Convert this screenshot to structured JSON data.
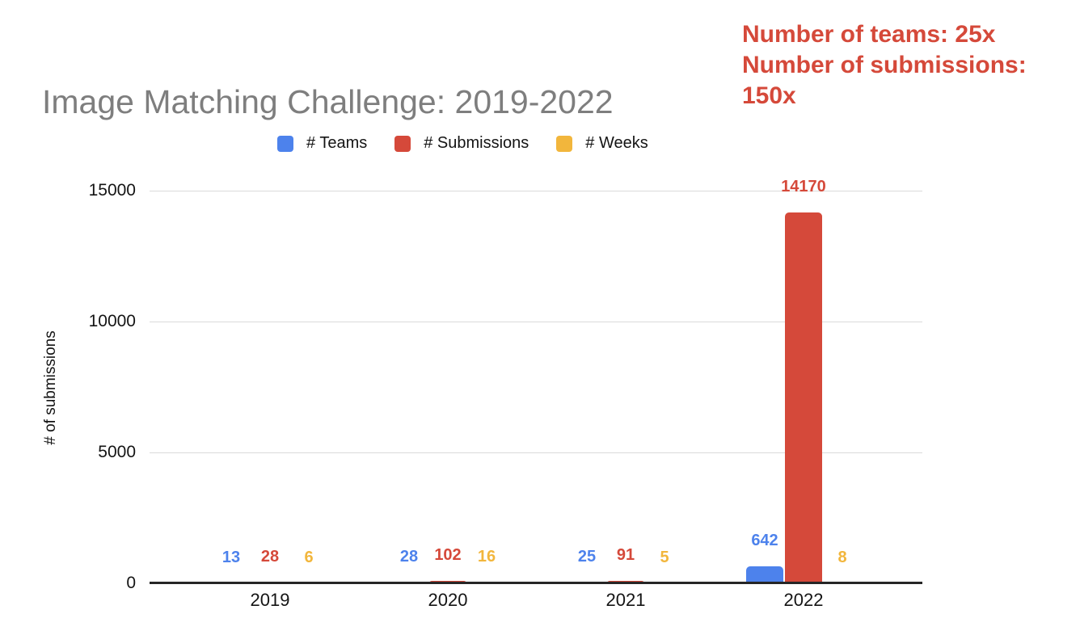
{
  "annotation": {
    "lines": [
      "Number of teams: 25x",
      "Number of submissions:",
      "150x"
    ],
    "color": "#d5493a"
  },
  "chart_data": {
    "type": "bar",
    "title": "Image Matching Challenge: 2019-2022",
    "title_color": "#7e7e7e",
    "categories": [
      "2019",
      "2020",
      "2021",
      "2022"
    ],
    "series": [
      {
        "name": "# Teams",
        "color": "#4d82ec",
        "values": [
          13,
          28,
          25,
          642
        ]
      },
      {
        "name": "# Submissions",
        "color": "#d5493a",
        "values": [
          28,
          102,
          91,
          14170
        ]
      },
      {
        "name": "# Weeks",
        "color": "#f2b63c",
        "values": [
          6,
          16,
          5,
          8
        ]
      }
    ],
    "xlabel": "",
    "ylabel": "# of submissions",
    "ylim": [
      0,
      15000
    ],
    "yticks": [
      0,
      5000,
      10000,
      15000
    ],
    "grid": true,
    "legend_position": "top"
  }
}
